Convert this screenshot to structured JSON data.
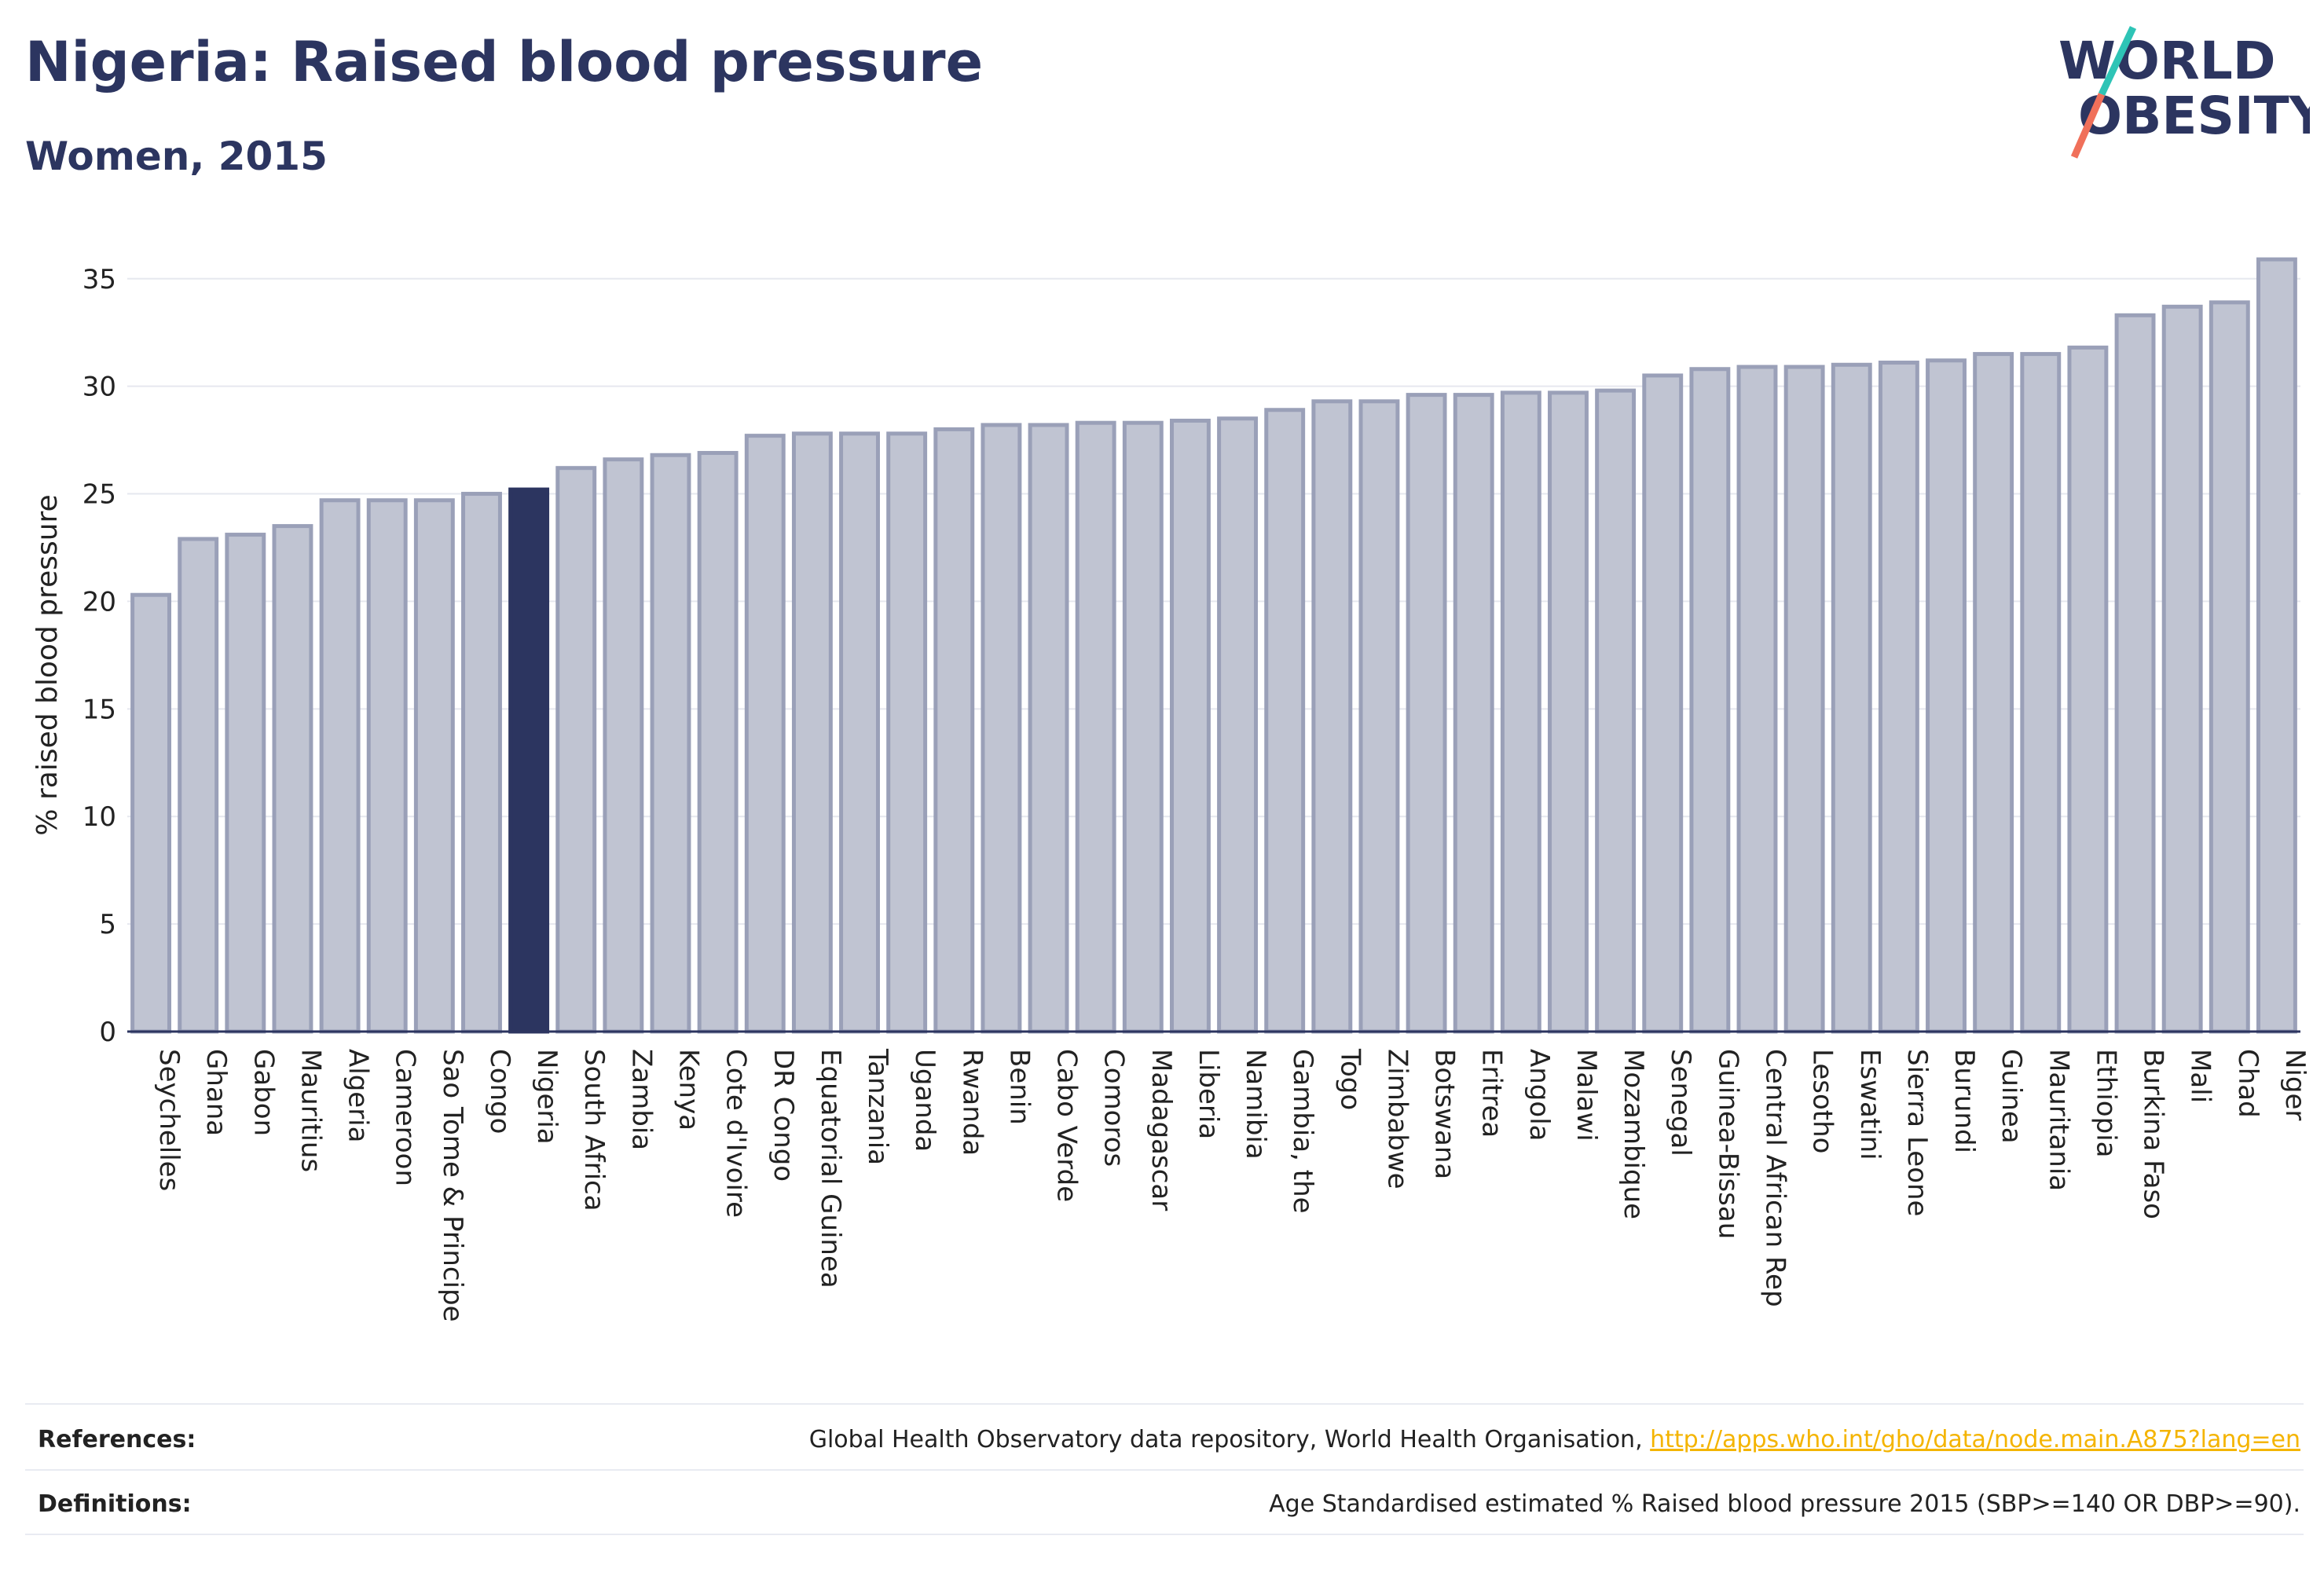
{
  "header": {
    "title": "Nigeria: Raised blood pressure",
    "subtitle": "Women, 2015"
  },
  "logo": {
    "line1": "WORLD",
    "line2": "OBESITY",
    "colors": {
      "text": "#2c3560",
      "slash_top": "#2ec4b6",
      "slash_bottom": "#f0705a"
    }
  },
  "chart_data": {
    "type": "bar",
    "ylabel": "% raised blood pressure",
    "ylim": [
      0,
      37
    ],
    "yticks": [
      0,
      5,
      10,
      15,
      20,
      25,
      30,
      35
    ],
    "grid": true,
    "highlight": "Nigeria",
    "colors": {
      "bar": "#c0c4d2",
      "bar_edge": "#9aa0b8",
      "highlight": "#2c3560"
    },
    "categories": [
      "Seychelles",
      "Ghana",
      "Gabon",
      "Mauritius",
      "Algeria",
      "Cameroon",
      "Sao Tome & Principe",
      "Congo",
      "Nigeria",
      "South Africa",
      "Zambia",
      "Kenya",
      "Cote d'Ivoire",
      "DR Congo",
      "Equatorial Guinea",
      "Tanzania",
      "Uganda",
      "Rwanda",
      "Benin",
      "Cabo Verde",
      "Comoros",
      "Madagascar",
      "Liberia",
      "Namibia",
      "Gambia, the",
      "Togo",
      "Zimbabwe",
      "Botswana",
      "Eritrea",
      "Angola",
      "Malawi",
      "Mozambique",
      "Senegal",
      "Guinea-Bissau",
      "Central African Rep",
      "Lesotho",
      "Eswatini",
      "Sierra Leone",
      "Burundi",
      "Guinea",
      "Mauritania",
      "Ethiopia",
      "Burkina Faso",
      "Mali",
      "Chad",
      "Niger"
    ],
    "values": [
      20.3,
      22.9,
      23.1,
      23.5,
      24.7,
      24.7,
      24.7,
      25.0,
      25.2,
      26.2,
      26.6,
      26.8,
      26.9,
      27.7,
      27.8,
      27.8,
      27.8,
      28.0,
      28.2,
      28.2,
      28.3,
      28.3,
      28.4,
      28.5,
      28.9,
      29.3,
      29.3,
      29.6,
      29.6,
      29.7,
      29.7,
      29.8,
      30.5,
      30.8,
      30.9,
      30.9,
      31.0,
      31.1,
      31.2,
      31.5,
      31.5,
      31.8,
      33.3,
      33.7,
      33.9,
      35.9
    ]
  },
  "footer": {
    "references_label": "References:",
    "references_text": "Global Health Observatory data repository, World Health Organisation, ",
    "references_link": "http://apps.who.int/gho/data/node.main.A875?lang=en",
    "definitions_label": "Definitions:",
    "definitions_text": "Age Standardised estimated % Raised blood pressure 2015 (SBP>=140 OR DBP>=90)."
  }
}
